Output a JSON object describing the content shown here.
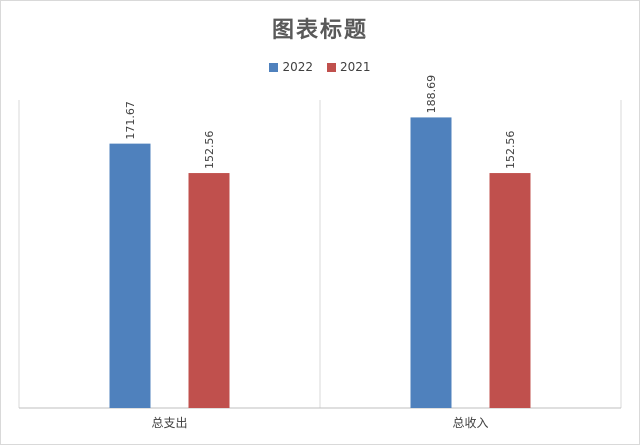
{
  "chart_data": {
    "type": "bar",
    "title": "图表标题",
    "categories": [
      "总支出",
      "总收入"
    ],
    "series": [
      {
        "name": "2022",
        "values": [
          171.67,
          188.69
        ],
        "color": "#4f81bd"
      },
      {
        "name": "2021",
        "values": [
          152.56,
          152.56
        ],
        "color": "#c0504d"
      }
    ],
    "data_labels": [
      [
        "171.67",
        "188.69"
      ],
      [
        "152.56",
        "152.56"
      ]
    ],
    "ylim": [
      0,
      200
    ],
    "grid": false,
    "legend_position": "top"
  }
}
